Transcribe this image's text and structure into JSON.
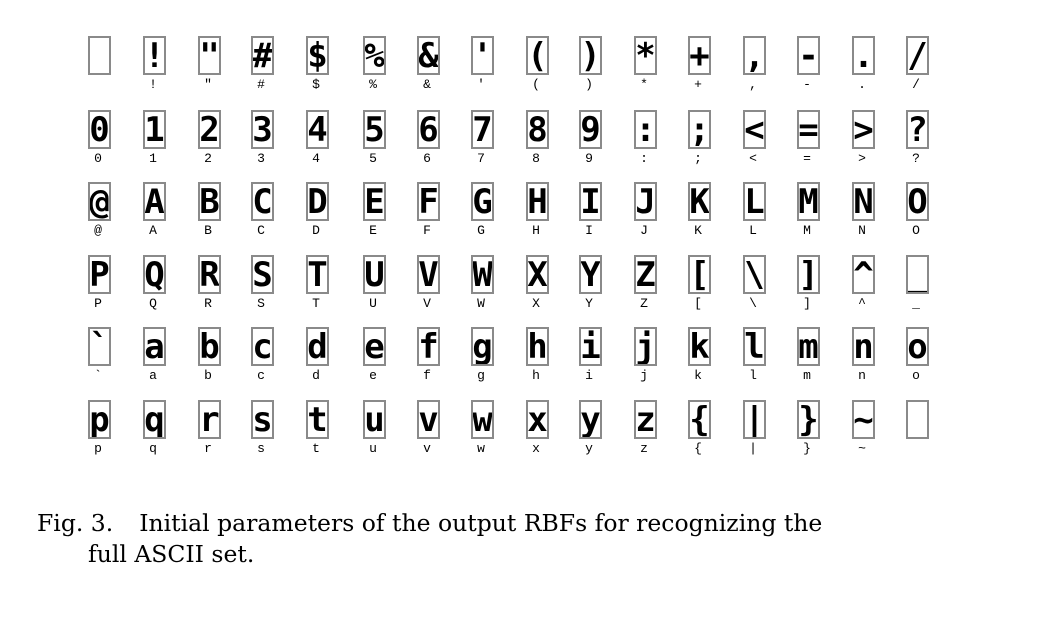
{
  "figure": {
    "rows": [
      [
        "",
        "!",
        "\"",
        "#",
        "$",
        "%",
        "&",
        "'",
        "(",
        ")",
        "*",
        "+",
        ",",
        "-",
        ".",
        "/"
      ],
      [
        "0",
        "1",
        "2",
        "3",
        "4",
        "5",
        "6",
        "7",
        "8",
        "9",
        ":",
        ";",
        "<",
        "=",
        ">",
        "?"
      ],
      [
        "@",
        "A",
        "B",
        "C",
        "D",
        "E",
        "F",
        "G",
        "H",
        "I",
        "J",
        "K",
        "L",
        "M",
        "N",
        "O"
      ],
      [
        "P",
        "Q",
        "R",
        "S",
        "T",
        "U",
        "V",
        "W",
        "X",
        "Y",
        "Z",
        "[",
        "\\",
        "]",
        "^",
        "_"
      ],
      [
        "`",
        "a",
        "b",
        "c",
        "d",
        "e",
        "f",
        "g",
        "h",
        "i",
        "j",
        "k",
        "l",
        "m",
        "n",
        "o"
      ],
      [
        "p",
        "q",
        "r",
        "s",
        "t",
        "u",
        "v",
        "w",
        "x",
        "y",
        "z",
        "{",
        "|",
        "}",
        "~",
        ""
      ]
    ]
  },
  "caption": {
    "label": "Fig. 3.",
    "text_line1": "Initial parameters of the output RBFs for recognizing the",
    "text_line2": "full ASCII set."
  }
}
